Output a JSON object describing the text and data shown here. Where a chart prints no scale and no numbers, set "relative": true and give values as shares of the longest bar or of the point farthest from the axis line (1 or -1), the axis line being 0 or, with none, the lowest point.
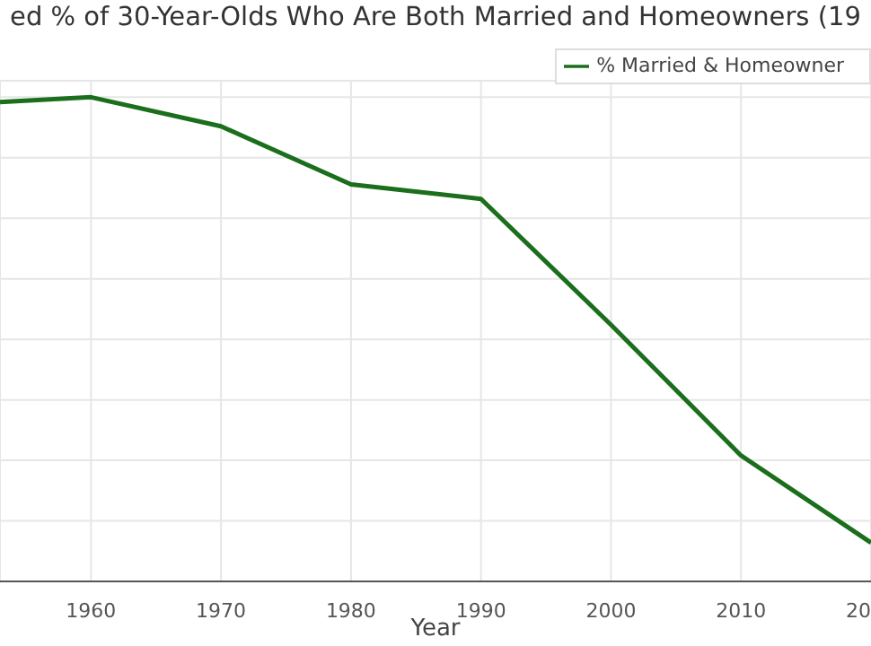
{
  "chart_data": {
    "type": "line",
    "title": "ed % of 30-Year-Olds Who Are Both Married and Homeowners (19",
    "xlabel": "Year",
    "relative": true,
    "x": [
      1953,
      1960,
      1970,
      1980,
      1990,
      2000,
      2010,
      2020
    ],
    "series": [
      {
        "name": "% Married & Homeowner",
        "color": "#1b6e1b",
        "values": [
          0.99,
          1,
          0.94,
          0.82,
          0.79,
          0.53,
          0.26,
          0.08
        ]
      }
    ],
    "xlim": [
      1953,
      2020
    ],
    "xticks": [
      1960,
      1970,
      1980,
      1990,
      2000,
      2010,
      {
        "value": 2020,
        "label": "20"
      }
    ],
    "grid": true,
    "legend": "top right"
  }
}
